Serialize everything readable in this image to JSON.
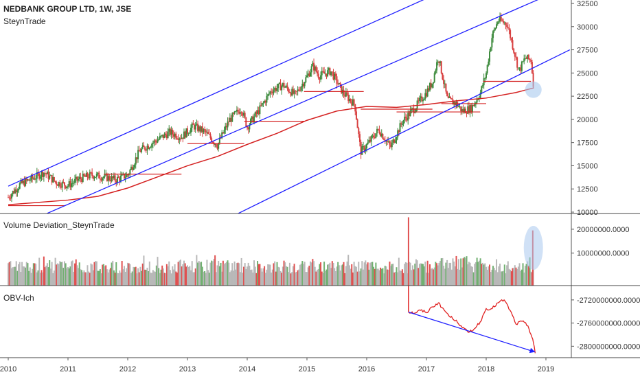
{
  "header": {
    "symbol_line": "NEDBANK GROUP LTD, 1W, JSE",
    "author": "SteynTrade"
  },
  "panes": {
    "volume_title": "Volume Deviation_SteynTrade",
    "obv_title": "OBV-Ich"
  },
  "colors": {
    "up_candle": "#3c8a3c",
    "down_candle": "#d84040",
    "channel": "#2020ff",
    "moving_average": "#d42020",
    "support_lines": "#d42020",
    "volume_neutral": "#b8b8b8",
    "volume_up": "#70b070",
    "volume_down": "#e05050",
    "obv_line": "#e02020",
    "highlight": "#a9c9ee"
  },
  "chart_data": [
    {
      "type": "candlestick",
      "title": "NEDBANK GROUP LTD, 1W, JSE",
      "x_ticks": [
        "2010",
        "2011",
        "2012",
        "2013",
        "2014",
        "2015",
        "2016",
        "2017",
        "2018",
        "2019"
      ],
      "y_ticks": [
        "10000",
        "12500",
        "15000",
        "17500",
        "20000",
        "22500",
        "25000",
        "27500",
        "30000",
        "32500"
      ],
      "ylim": [
        10000,
        32500
      ],
      "xlim": [
        2010.0,
        2019.2
      ],
      "price_path": [
        [
          2010.0,
          11600
        ],
        [
          2010.2,
          13000
        ],
        [
          2010.4,
          13600
        ],
        [
          2010.6,
          14300
        ],
        [
          2010.8,
          13200
        ],
        [
          2011.0,
          12900
        ],
        [
          2011.2,
          13600
        ],
        [
          2011.4,
          14000
        ],
        [
          2011.6,
          13800
        ],
        [
          2011.8,
          13500
        ],
        [
          2012.0,
          14000
        ],
        [
          2012.2,
          16600
        ],
        [
          2012.5,
          17800
        ],
        [
          2012.7,
          18600
        ],
        [
          2012.9,
          18100
        ],
        [
          2013.1,
          19300
        ],
        [
          2013.3,
          18600
        ],
        [
          2013.5,
          17200
        ],
        [
          2013.7,
          19900
        ],
        [
          2013.9,
          21200
        ],
        [
          2014.0,
          19200
        ],
        [
          2014.2,
          21000
        ],
        [
          2014.4,
          23100
        ],
        [
          2014.6,
          23700
        ],
        [
          2014.8,
          22600
        ],
        [
          2015.0,
          24600
        ],
        [
          2015.1,
          25800
        ],
        [
          2015.2,
          24700
        ],
        [
          2015.4,
          25200
        ],
        [
          2015.6,
          22900
        ],
        [
          2015.8,
          21600
        ],
        [
          2015.9,
          16500
        ],
        [
          2016.0,
          17200
        ],
        [
          2016.2,
          18900
        ],
        [
          2016.4,
          17000
        ],
        [
          2016.6,
          19800
        ],
        [
          2016.8,
          21200
        ],
        [
          2017.0,
          22900
        ],
        [
          2017.1,
          24000
        ],
        [
          2017.2,
          26800
        ],
        [
          2017.35,
          22100
        ],
        [
          2017.5,
          21700
        ],
        [
          2017.6,
          20900
        ],
        [
          2017.75,
          21200
        ],
        [
          2017.9,
          22800
        ],
        [
          2018.0,
          25000
        ],
        [
          2018.1,
          29000
        ],
        [
          2018.2,
          30700
        ],
        [
          2018.35,
          30300
        ],
        [
          2018.45,
          27800
        ],
        [
          2018.55,
          25200
        ],
        [
          2018.65,
          26600
        ],
        [
          2018.75,
          26400
        ],
        [
          2018.8,
          23200
        ]
      ],
      "moving_average": [
        [
          2010.0,
          10800
        ],
        [
          2011.0,
          11300
        ],
        [
          2011.5,
          11700
        ],
        [
          2012.0,
          12600
        ],
        [
          2012.5,
          13800
        ],
        [
          2013.0,
          15000
        ],
        [
          2013.5,
          16000
        ],
        [
          2014.0,
          17300
        ],
        [
          2014.5,
          18500
        ],
        [
          2015.0,
          19900
        ],
        [
          2015.5,
          20900
        ],
        [
          2016.0,
          21400
        ],
        [
          2016.5,
          21300
        ],
        [
          2017.0,
          21600
        ],
        [
          2017.5,
          22000
        ],
        [
          2018.0,
          22300
        ],
        [
          2018.5,
          22900
        ],
        [
          2018.8,
          23400
        ]
      ],
      "support_lines": [
        {
          "from": 2010.0,
          "to": 2010.95,
          "value": 10700
        },
        {
          "from": 2011.6,
          "to": 2012.9,
          "value": 14100
        },
        {
          "from": 2013.0,
          "to": 2013.95,
          "value": 17400
        },
        {
          "from": 2013.95,
          "to": 2014.95,
          "value": 19800
        },
        {
          "from": 2014.95,
          "to": 2015.95,
          "value": 23000
        },
        {
          "from": 2015.9,
          "to": 2017.1,
          "value": 21100
        },
        {
          "from": 2016.5,
          "to": 2017.9,
          "value": 20800
        },
        {
          "from": 2017.25,
          "to": 2018.0,
          "value": 21700
        },
        {
          "from": 2017.95,
          "to": 2018.75,
          "value": 24100
        }
      ],
      "channel_lines": [
        {
          "name": "upper",
          "from": [
            2010.0,
            12800
          ],
          "to": [
            2017.85,
            35500
          ]
        },
        {
          "name": "middle",
          "from": [
            2010.45,
            9300
          ],
          "to": [
            2018.9,
            33000
          ]
        },
        {
          "name": "lower",
          "from": [
            2013.8,
            9700
          ],
          "to": [
            2019.4,
            27500
          ]
        }
      ]
    },
    {
      "type": "bar",
      "title": "Volume Deviation_SteynTrade",
      "y_ticks": [
        "10000000.0000",
        "20000000.0000"
      ],
      "ylim": [
        -3000000,
        26000000
      ],
      "spikes": [
        {
          "x": 2016.7,
          "value": 25000000,
          "color": "down"
        },
        {
          "x": 2018.78,
          "value": 19500000,
          "color": "down"
        }
      ]
    },
    {
      "type": "line",
      "title": "OBV-Ich",
      "y_ticks": [
        "-2720000000.0000",
        "-2760000000.0000",
        "-2800000000.0000"
      ],
      "ylim": [
        -2815000000,
        -2700000000
      ],
      "series": [
        {
          "x": [
            2016.7,
            2016.8,
            2016.9,
            2017.0,
            2017.1,
            2017.2,
            2017.3,
            2017.4,
            2017.5,
            2017.6,
            2017.7,
            2017.8,
            2017.9,
            2018.0,
            2018.1,
            2018.2,
            2018.3,
            2018.4,
            2018.5,
            2018.6,
            2018.7,
            2018.78,
            2018.82
          ],
          "y": [
            -2741000000,
            -2743000000,
            -2738000000,
            -2742000000,
            -2732000000,
            -2725000000,
            -2738000000,
            -2750000000,
            -2755000000,
            -2768000000,
            -2776000000,
            -2770000000,
            -2758000000,
            -2735000000,
            -2735000000,
            -2725000000,
            -2720000000,
            -2738000000,
            -2762000000,
            -2757000000,
            -2765000000,
            -2788000000,
            -2812000000
          ]
        }
      ],
      "trendline": {
        "from": [
          2016.7,
          -2741000000
        ],
        "to": [
          2018.82,
          -2810000000
        ]
      }
    }
  ]
}
